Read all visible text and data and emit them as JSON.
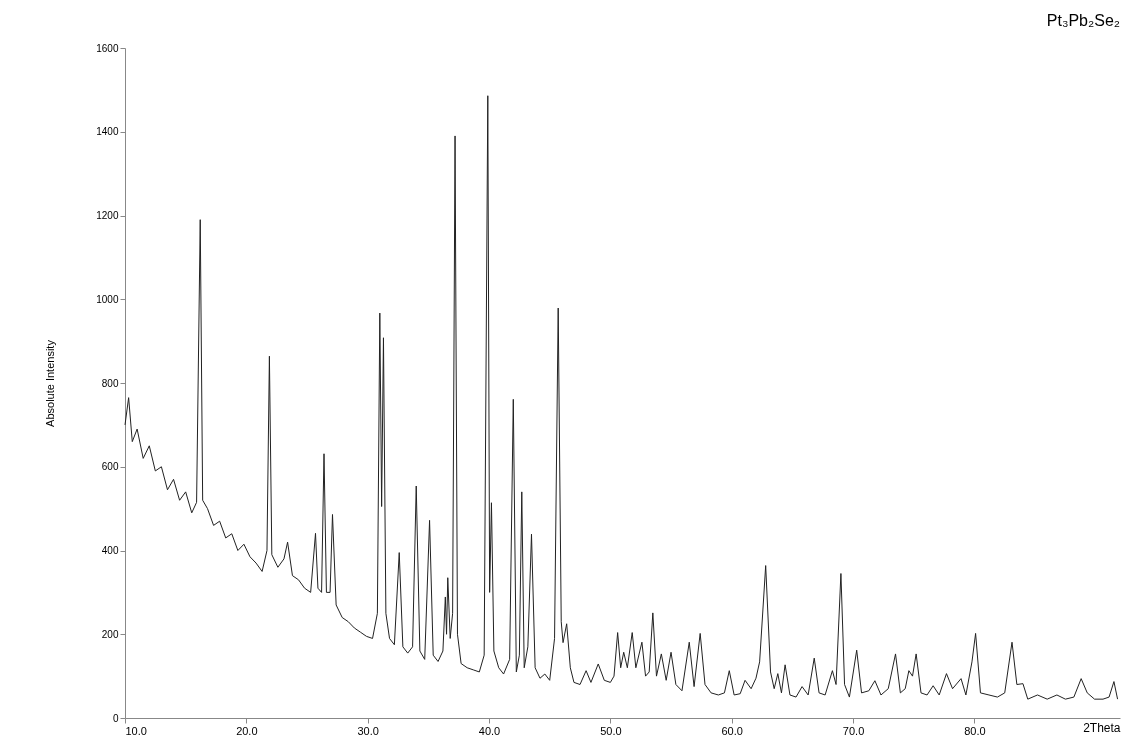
{
  "chart_data": {
    "type": "line",
    "xlabel": "2Theta",
    "ylabel": "Absolute Intensity",
    "annotations": [
      "Pt₃Pb₂Se₂"
    ],
    "color": "#222222",
    "xlim": [
      10,
      92
    ],
    "ylim": [
      0,
      1600
    ],
    "xticks": [
      {
        "value": 10,
        "label": "10.0"
      },
      {
        "value": 20,
        "label": "20.0"
      },
      {
        "value": 30,
        "label": "30.0"
      },
      {
        "value": 40,
        "label": "40.0"
      },
      {
        "value": 50,
        "label": "50.0"
      },
      {
        "value": 60,
        "label": "60.0"
      },
      {
        "value": 70,
        "label": "70.0"
      },
      {
        "value": 80,
        "label": "80.0"
      }
    ],
    "yticks": [
      0,
      200,
      400,
      600,
      800,
      1000,
      1200,
      1400,
      1600
    ],
    "x": [
      10,
      10.3,
      10.6,
      11,
      11.5,
      12,
      12.5,
      13,
      13.5,
      14,
      14.5,
      15,
      15.5,
      15.9,
      16.2,
      16.4,
      16.8,
      17.3,
      17.8,
      18.3,
      18.8,
      19.3,
      19.8,
      20.3,
      20.8,
      21.3,
      21.7,
      21.9,
      22.1,
      22.6,
      23.1,
      23.4,
      23.8,
      24.3,
      24.8,
      25.3,
      25.7,
      25.9,
      26.2,
      26.4,
      26.6,
      26.9,
      27.1,
      27.4,
      27.9,
      28.4,
      28.9,
      29.4,
      29.9,
      30.4,
      30.8,
      31.0,
      31.15,
      31.3,
      31.5,
      31.8,
      32.2,
      32.6,
      32.9,
      33.3,
      33.7,
      34.0,
      34.3,
      34.7,
      35.1,
      35.4,
      35.8,
      36.2,
      36.4,
      36.5,
      36.6,
      36.8,
      37.0,
      37.2,
      37.4,
      37.7,
      38.2,
      38.7,
      39.2,
      39.6,
      39.9,
      40.05,
      40.2,
      40.4,
      40.8,
      41.2,
      41.7,
      42.0,
      42.25,
      42.5,
      42.7,
      42.9,
      43.2,
      43.5,
      43.8,
      44.2,
      44.6,
      45.0,
      45.4,
      45.7,
      45.95,
      46.1,
      46.4,
      46.7,
      47.0,
      47.5,
      48.0,
      48.4,
      49.0,
      49.5,
      50.0,
      50.3,
      50.6,
      50.85,
      51.1,
      51.4,
      51.8,
      52.1,
      52.6,
      52.9,
      53.2,
      53.5,
      53.8,
      54.2,
      54.6,
      55.0,
      55.4,
      55.9,
      56.5,
      56.9,
      57.4,
      57.8,
      58.3,
      58.9,
      59.4,
      59.8,
      60.2,
      60.7,
      61.1,
      61.6,
      62.0,
      62.3,
      62.8,
      63.2,
      63.5,
      63.8,
      64.1,
      64.4,
      64.8,
      65.3,
      65.8,
      66.3,
      66.8,
      67.2,
      67.7,
      68.3,
      68.6,
      69.0,
      69.3,
      69.7,
      70.3,
      70.7,
      71.3,
      71.8,
      72.3,
      72.9,
      73.5,
      73.9,
      74.3,
      74.6,
      74.9,
      75.2,
      75.6,
      76.1,
      76.6,
      77.1,
      77.7,
      78.2,
      78.9,
      79.3,
      79.8,
      80.1,
      80.5,
      81.2,
      81.9,
      82.5,
      83.1,
      83.5,
      84.0,
      84.4,
      85.2,
      86.0,
      86.8,
      87.5,
      88.2,
      88.8,
      89.3,
      89.9,
      90.6,
      91.1,
      91.5,
      91.8
    ],
    "values": [
      700,
      765,
      660,
      690,
      620,
      650,
      590,
      600,
      545,
      570,
      520,
      540,
      490,
      515,
      1190,
      520,
      500,
      460,
      470,
      430,
      440,
      400,
      415,
      385,
      370,
      350,
      400,
      864,
      390,
      360,
      380,
      420,
      340,
      330,
      310,
      300,
      441,
      310,
      300,
      631,
      300,
      300,
      486,
      270,
      240,
      230,
      215,
      205,
      195,
      190,
      250,
      967,
      505,
      908,
      250,
      190,
      175,
      395,
      170,
      155,
      170,
      554,
      160,
      140,
      472,
      150,
      135,
      160,
      289,
      200,
      335,
      190,
      250,
      1390,
      200,
      130,
      120,
      115,
      110,
      150,
      1486,
      300,
      514,
      160,
      120,
      105,
      140,
      761,
      110,
      150,
      540,
      120,
      170,
      439,
      120,
      95,
      105,
      90,
      190,
      979,
      230,
      180,
      225,
      120,
      85,
      80,
      113,
      85,
      129,
      90,
      85,
      100,
      204,
      120,
      157,
      120,
      204,
      120,
      181,
      100,
      110,
      251,
      100,
      153,
      90,
      157,
      80,
      65,
      181,
      75,
      202,
      80,
      60,
      55,
      60,
      113,
      55,
      58,
      90,
      70,
      95,
      134,
      364,
      110,
      70,
      106,
      60,
      127,
      55,
      50,
      75,
      55,
      143,
      60,
      55,
      113,
      80,
      345,
      80,
      50,
      162,
      60,
      65,
      89,
      55,
      70,
      153,
      60,
      70,
      113,
      100,
      153,
      60,
      55,
      77,
      55,
      106,
      70,
      94,
      55,
      134,
      202,
      60,
      55,
      50,
      60,
      181,
      80,
      82,
      45,
      55,
      45,
      55,
      45,
      50,
      94,
      60,
      45,
      45,
      50,
      87,
      45
    ]
  }
}
